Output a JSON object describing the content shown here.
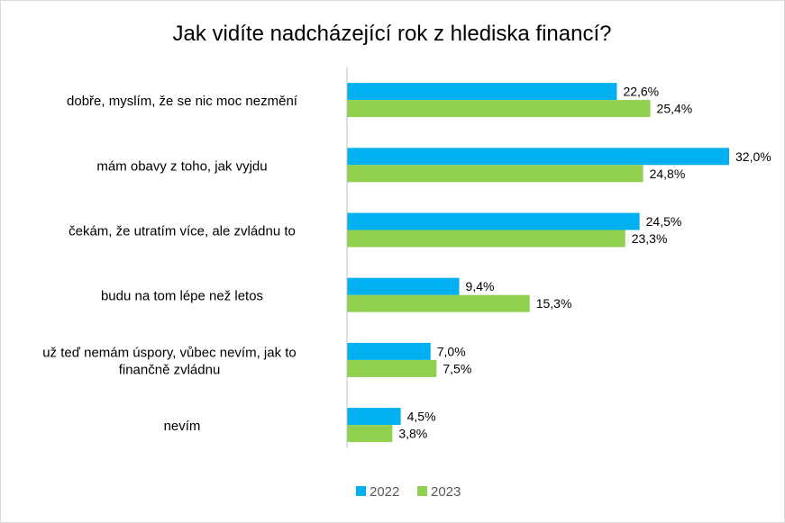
{
  "chart_data": {
    "type": "bar",
    "orientation": "horizontal",
    "title": "Jak vidíte nadcházející rok z hlediska financí?",
    "xlabel": "",
    "ylabel": "",
    "xlim": [
      0,
      32
    ],
    "grid": false,
    "legend_position": "bottom",
    "categories": [
      [
        "dobře, myslím, že se nic moc nezmění"
      ],
      [
        "mám obavy z toho, jak vyjdu"
      ],
      [
        "čekám, že utratím více, ale zvládnu to"
      ],
      [
        "budu na tom lépe než letos"
      ],
      [
        "už teď nemám úspory, vůbec nevím, jak to",
        "finančně zvládnu"
      ],
      [
        "nevím"
      ]
    ],
    "series": [
      {
        "name": "2022",
        "color": "#00b0f0",
        "values": [
          22.6,
          32.0,
          24.5,
          9.4,
          7.0,
          4.5
        ],
        "labels": [
          "22,6%",
          "32,0%",
          "24,5%",
          "9,4%",
          "7,0%",
          "4,5%"
        ]
      },
      {
        "name": "2023",
        "color": "#92d050",
        "values": [
          25.4,
          24.8,
          23.3,
          15.3,
          7.5,
          3.8
        ],
        "labels": [
          "25,4%",
          "24,8%",
          "23,3%",
          "15,3%",
          "7,5%",
          "3,8%"
        ]
      }
    ]
  }
}
